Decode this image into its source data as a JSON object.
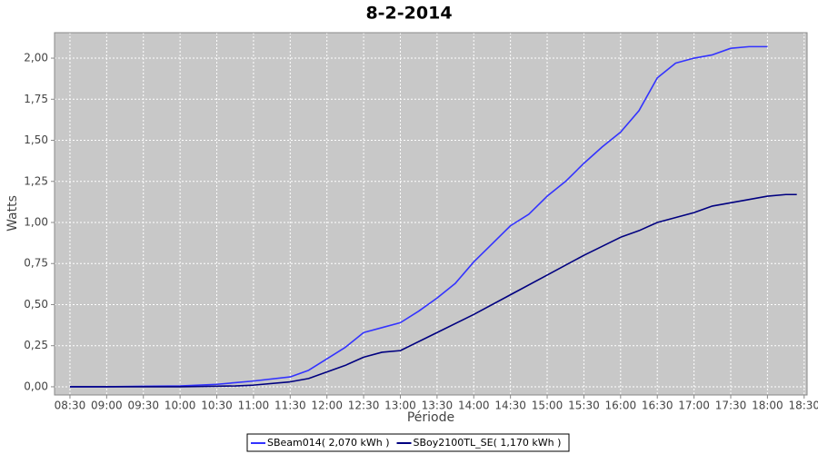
{
  "chart_data": {
    "type": "line",
    "title": "8-2-2014",
    "x_label": "Période",
    "y_label": "Watts",
    "xlim": [
      8.29,
      18.54
    ],
    "xticks": [
      {
        "value": 8.5,
        "label": "08:30"
      },
      {
        "value": 9,
        "label": "09:00"
      },
      {
        "value": 9.5,
        "label": "09:30"
      },
      {
        "value": 10,
        "label": "10:00"
      },
      {
        "value": 10.5,
        "label": "10:30"
      },
      {
        "value": 11,
        "label": "11:00"
      },
      {
        "value": 11.5,
        "label": "11:30"
      },
      {
        "value": 12,
        "label": "12:00"
      },
      {
        "value": 12.5,
        "label": "12:30"
      },
      {
        "value": 13,
        "label": "13:00"
      },
      {
        "value": 13.5,
        "label": "13:30"
      },
      {
        "value": 14,
        "label": "14:00"
      },
      {
        "value": 14.5,
        "label": "14:30"
      },
      {
        "value": 15,
        "label": "15:00"
      },
      {
        "value": 15.5,
        "label": "15:30"
      },
      {
        "value": 16,
        "label": "16:00"
      },
      {
        "value": 16.5,
        "label": "16:30"
      },
      {
        "value": 17,
        "label": "17:00"
      },
      {
        "value": 17.5,
        "label": "17:30"
      },
      {
        "value": 18,
        "label": "18:00"
      },
      {
        "value": 18.5,
        "label": "18:30"
      }
    ],
    "ylim": [
      -0.05,
      2.155
    ],
    "yticks": [
      {
        "value": 0,
        "label": "0,00"
      },
      {
        "value": 0.25,
        "label": "0,25"
      },
      {
        "value": 0.5,
        "label": "0,50"
      },
      {
        "value": 0.75,
        "label": "0,75"
      },
      {
        "value": 1,
        "label": "1,00"
      },
      {
        "value": 1.25,
        "label": "1,25"
      },
      {
        "value": 1.5,
        "label": "1,50"
      },
      {
        "value": 1.75,
        "label": "1,75"
      },
      {
        "value": 2,
        "label": "2,00"
      }
    ],
    "grid": true,
    "series": [
      {
        "name": "SBeam014( 2,070 kWh )",
        "color": "#3333ff",
        "x": [
          8.5,
          9,
          9.5,
          10,
          10.5,
          10.75,
          11,
          11.5,
          11.75,
          12,
          12.25,
          12.5,
          12.75,
          13,
          13.25,
          13.5,
          13.75,
          14,
          14.25,
          14.5,
          14.75,
          15,
          15.25,
          15.5,
          15.75,
          16,
          16.25,
          16.5,
          16.75,
          17,
          17.25,
          17.5,
          17.75,
          18
        ],
        "values": [
          0,
          0,
          0.003,
          0.005,
          0.015,
          0.025,
          0.035,
          0.06,
          0.1,
          0.17,
          0.24,
          0.33,
          0.36,
          0.39,
          0.46,
          0.54,
          0.63,
          0.76,
          0.87,
          0.98,
          1.05,
          1.16,
          1.25,
          1.36,
          1.46,
          1.55,
          1.68,
          1.88,
          1.97,
          2.0,
          2.02,
          2.06,
          2.07,
          2.07
        ]
      },
      {
        "name": "SBoy2100TL_SE( 1,170 kWh )",
        "color": "#000080",
        "x": [
          8.5,
          10,
          10.75,
          11,
          11.5,
          11.75,
          12,
          12.25,
          12.5,
          12.75,
          13,
          13.5,
          14,
          14.5,
          15,
          15.5,
          16,
          16.25,
          16.5,
          17,
          17.25,
          17.5,
          18,
          18.25,
          18.4
        ],
        "values": [
          0,
          0,
          0.005,
          0.01,
          0.03,
          0.05,
          0.09,
          0.13,
          0.18,
          0.21,
          0.22,
          0.33,
          0.44,
          0.56,
          0.68,
          0.8,
          0.91,
          0.95,
          1.0,
          1.06,
          1.1,
          1.12,
          1.16,
          1.17,
          1.17
        ]
      }
    ]
  }
}
